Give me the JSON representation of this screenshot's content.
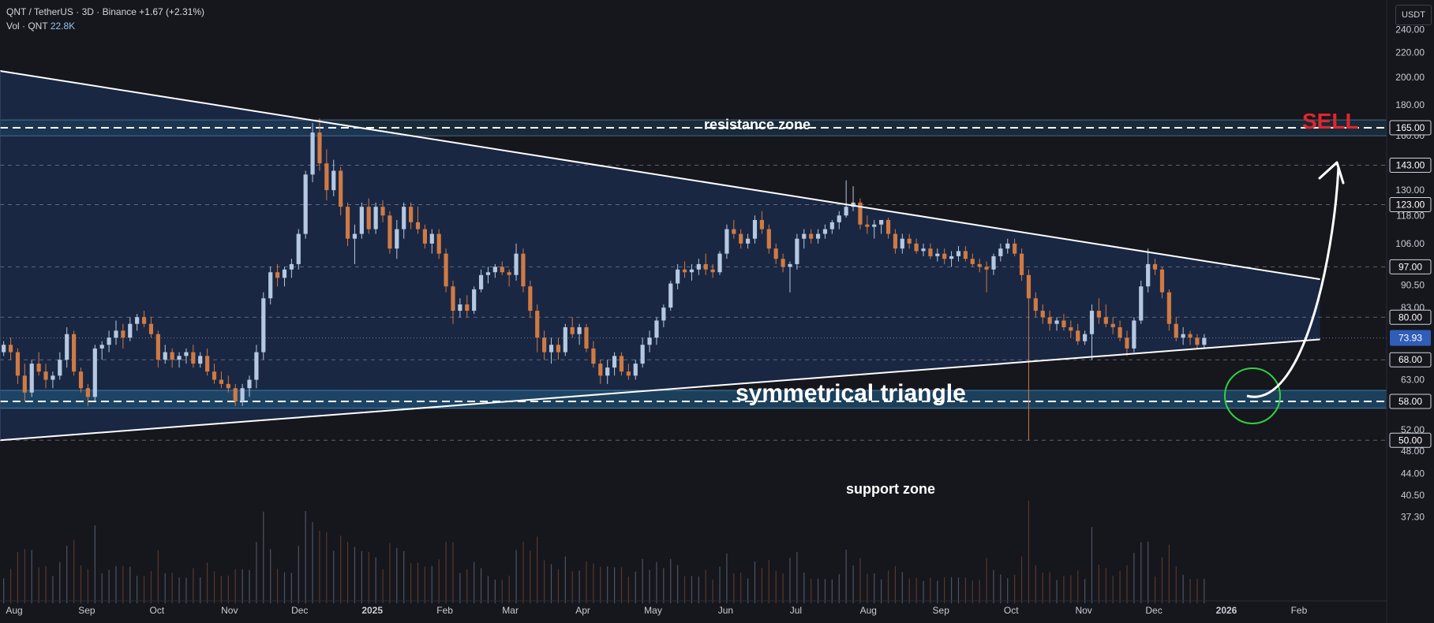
{
  "header": {
    "symbol": "QNT / TetherUS · 3D · Binance",
    "change": "+1.67 (+2.31%)",
    "volume_label": "Vol · QNT",
    "volume_value": "22.8K"
  },
  "currency_button": "USDT",
  "annotations": {
    "resistance": "resistance zone",
    "support": "support zone",
    "triangle": "symmetrical triangle",
    "signal": "SELL"
  },
  "colors": {
    "background": "#16161d",
    "up_candle": "#b4c8e2",
    "down_candle": "#d07a43",
    "triangle_fill": "#1a2a4a",
    "zone_fill": "#1f4f70",
    "signal": "#e0262a",
    "circle": "#30d040"
  },
  "chart_data": {
    "type": "candlestick",
    "title": "QNT / TetherUS · 3D · Binance",
    "x_ticks": [
      "Aug",
      "Sep",
      "Oct",
      "Nov",
      "Dec",
      "2025",
      "Feb",
      "Mar",
      "Apr",
      "May",
      "Jun",
      "Jul",
      "Aug",
      "Sep",
      "Oct",
      "Nov",
      "Dec",
      "2026",
      "Feb"
    ],
    "y_ticks": [
      240.0,
      220.0,
      200.0,
      180.0,
      160.0,
      143.0,
      130.0,
      118.0,
      106.0,
      97.0,
      90.5,
      83.0,
      74.0,
      68.0,
      63.0,
      58.0,
      52.0,
      48.0,
      44.0,
      40.5,
      37.3
    ],
    "y_scale": "log",
    "last_price": 73.93,
    "price_labels": [
      165.0,
      143.0,
      123.0,
      97.0,
      80.0,
      68.0,
      58.0,
      50.0
    ],
    "resistance_zone": [
      160.0,
      170.0
    ],
    "support_zone": [
      56.5,
      60.5
    ],
    "triangle": {
      "upper": [
        [
          "2024-07-26",
          205.0
        ],
        [
          "2026-02-10",
          92.5
        ]
      ],
      "lower": [
        [
          "2024-07-26",
          50.0
        ],
        [
          "2026-02-10",
          73.5
        ]
      ]
    },
    "grid": false,
    "candles": [
      [
        "2024-07-26",
        70,
        73,
        69,
        72
      ],
      [
        "2024-07-29",
        72,
        74,
        68,
        70
      ],
      [
        "2024-08-01",
        70,
        71,
        62,
        64
      ],
      [
        "2024-08-04",
        64,
        67,
        58,
        60
      ],
      [
        "2024-08-07",
        60,
        68,
        59,
        67
      ],
      [
        "2024-08-10",
        67,
        70,
        64,
        65
      ],
      [
        "2024-08-13",
        65,
        67,
        61,
        63
      ],
      [
        "2024-08-16",
        63,
        65,
        61,
        64
      ],
      [
        "2024-08-19",
        64,
        70,
        63,
        68
      ],
      [
        "2024-08-22",
        68,
        77,
        66,
        75
      ],
      [
        "2024-08-25",
        75,
        76,
        64,
        65
      ],
      [
        "2024-08-28",
        65,
        66,
        60,
        61
      ],
      [
        "2024-08-31",
        61,
        62,
        57,
        59
      ],
      [
        "2024-09-03",
        59,
        72,
        58,
        71
      ],
      [
        "2024-09-06",
        71,
        73,
        68,
        72
      ],
      [
        "2024-09-09",
        72,
        76,
        70,
        74
      ],
      [
        "2024-09-12",
        74,
        79,
        72,
        76
      ],
      [
        "2024-09-15",
        76,
        78,
        71,
        74
      ],
      [
        "2024-09-18",
        74,
        80,
        73,
        78
      ],
      [
        "2024-09-21",
        78,
        81,
        76,
        80
      ],
      [
        "2024-09-24",
        80,
        82,
        77,
        78
      ],
      [
        "2024-09-27",
        78,
        80,
        74,
        75
      ],
      [
        "2024-09-30",
        75,
        76,
        66,
        68
      ],
      [
        "2024-10-03",
        68,
        72,
        67,
        70
      ],
      [
        "2024-10-06",
        70,
        71,
        66,
        68
      ],
      [
        "2024-10-09",
        68,
        70,
        66,
        69
      ],
      [
        "2024-10-12",
        69,
        71,
        67,
        70
      ],
      [
        "2024-10-15",
        70,
        72,
        66,
        67
      ],
      [
        "2024-10-18",
        67,
        70,
        66,
        69
      ],
      [
        "2024-10-21",
        69,
        71,
        64,
        65
      ],
      [
        "2024-10-24",
        65,
        67,
        62,
        63
      ],
      [
        "2024-10-27",
        63,
        65,
        61,
        62
      ],
      [
        "2024-10-30",
        62,
        64,
        60,
        61
      ],
      [
        "2024-11-02",
        61,
        62,
        57,
        58
      ],
      [
        "2024-11-05",
        58,
        62,
        57,
        61
      ],
      [
        "2024-11-08",
        61,
        64,
        59,
        63
      ],
      [
        "2024-11-11",
        63,
        72,
        61,
        70
      ],
      [
        "2024-11-14",
        70,
        88,
        68,
        86
      ],
      [
        "2024-11-17",
        86,
        97,
        84,
        95
      ],
      [
        "2024-11-20",
        95,
        98,
        90,
        93
      ],
      [
        "2024-11-23",
        93,
        97,
        90,
        96
      ],
      [
        "2024-11-26",
        96,
        100,
        93,
        98
      ],
      [
        "2024-11-29",
        98,
        112,
        96,
        110
      ],
      [
        "2024-12-02",
        110,
        140,
        108,
        138
      ],
      [
        "2024-12-05",
        138,
        168,
        134,
        162
      ],
      [
        "2024-12-08",
        162,
        171,
        140,
        144
      ],
      [
        "2024-12-11",
        144,
        152,
        125,
        130
      ],
      [
        "2024-12-14",
        130,
        146,
        127,
        140
      ],
      [
        "2024-12-17",
        140,
        142,
        118,
        122
      ],
      [
        "2024-12-20",
        122,
        124,
        105,
        108
      ],
      [
        "2024-12-23",
        108,
        114,
        98,
        110
      ],
      [
        "2024-12-26",
        110,
        124,
        108,
        122
      ],
      [
        "2024-12-29",
        122,
        126,
        110,
        112
      ],
      [
        "2025-01-01",
        112,
        124,
        110,
        122
      ],
      [
        "2025-01-04",
        122,
        125,
        115,
        118
      ],
      [
        "2025-01-07",
        118,
        120,
        102,
        104
      ],
      [
        "2025-01-10",
        104,
        116,
        100,
        112
      ],
      [
        "2025-01-13",
        112,
        124,
        108,
        122
      ],
      [
        "2025-01-16",
        122,
        124,
        112,
        115
      ],
      [
        "2025-01-19",
        115,
        122,
        110,
        112
      ],
      [
        "2025-01-22",
        112,
        114,
        104,
        106
      ],
      [
        "2025-01-25",
        106,
        112,
        102,
        110
      ],
      [
        "2025-01-28",
        110,
        112,
        100,
        102
      ],
      [
        "2025-01-31",
        102,
        104,
        88,
        90
      ],
      [
        "2025-02-03",
        90,
        92,
        78,
        82
      ],
      [
        "2025-02-06",
        82,
        86,
        80,
        84
      ],
      [
        "2025-02-09",
        84,
        87,
        80,
        82
      ],
      [
        "2025-02-12",
        82,
        90,
        81,
        89
      ],
      [
        "2025-02-15",
        89,
        96,
        88,
        94
      ],
      [
        "2025-02-18",
        94,
        97,
        91,
        95
      ],
      [
        "2025-02-21",
        95,
        98,
        93,
        97
      ],
      [
        "2025-02-24",
        97,
        99,
        94,
        95
      ],
      [
        "2025-02-27",
        95,
        96,
        90,
        94
      ],
      [
        "2025-03-02",
        94,
        106,
        92,
        102
      ],
      [
        "2025-03-05",
        102,
        104,
        88,
        90
      ],
      [
        "2025-03-08",
        90,
        92,
        80,
        82
      ],
      [
        "2025-03-11",
        82,
        84,
        70,
        74
      ],
      [
        "2025-03-14",
        74,
        76,
        68,
        70
      ],
      [
        "2025-03-17",
        70,
        74,
        67,
        72
      ],
      [
        "2025-03-20",
        72,
        74,
        68,
        70
      ],
      [
        "2025-03-23",
        70,
        78,
        69,
        77
      ],
      [
        "2025-03-26",
        77,
        80,
        74,
        75
      ],
      [
        "2025-03-29",
        75,
        78,
        72,
        77
      ],
      [
        "2025-04-01",
        77,
        78,
        70,
        71
      ],
      [
        "2025-04-04",
        71,
        73,
        66,
        67
      ],
      [
        "2025-04-07",
        67,
        68,
        62,
        64
      ],
      [
        "2025-04-10",
        64,
        68,
        62,
        66
      ],
      [
        "2025-04-13",
        66,
        70,
        64,
        69
      ],
      [
        "2025-04-16",
        69,
        70,
        64,
        65
      ],
      [
        "2025-04-19",
        65,
        67,
        63,
        64
      ],
      [
        "2025-04-22",
        64,
        68,
        63,
        67
      ],
      [
        "2025-04-25",
        67,
        74,
        66,
        72
      ],
      [
        "2025-04-28",
        72,
        76,
        70,
        74
      ],
      [
        "2025-05-01",
        74,
        80,
        72,
        79
      ],
      [
        "2025-05-04",
        79,
        84,
        77,
        83
      ],
      [
        "2025-05-07",
        83,
        92,
        82,
        91
      ],
      [
        "2025-05-10",
        91,
        98,
        89,
        96
      ],
      [
        "2025-05-13",
        96,
        99,
        93,
        95
      ],
      [
        "2025-05-16",
        95,
        98,
        92,
        96
      ],
      [
        "2025-05-19",
        96,
        100,
        94,
        98
      ],
      [
        "2025-05-22",
        98,
        102,
        94,
        96
      ],
      [
        "2025-05-25",
        96,
        98,
        93,
        95
      ],
      [
        "2025-05-28",
        95,
        103,
        94,
        102
      ],
      [
        "2025-05-31",
        102,
        114,
        100,
        112
      ],
      [
        "2025-06-03",
        112,
        116,
        108,
        110
      ],
      [
        "2025-06-06",
        110,
        112,
        104,
        106
      ],
      [
        "2025-06-09",
        106,
        110,
        104,
        108
      ],
      [
        "2025-06-12",
        108,
        118,
        106,
        116
      ],
      [
        "2025-06-15",
        116,
        120,
        110,
        112
      ],
      [
        "2025-06-18",
        112,
        114,
        102,
        104
      ],
      [
        "2025-06-21",
        104,
        106,
        98,
        100
      ],
      [
        "2025-06-24",
        100,
        102,
        95,
        97
      ],
      [
        "2025-06-27",
        97,
        99,
        88,
        98
      ],
      [
        "2025-06-30",
        98,
        110,
        96,
        108
      ],
      [
        "2025-07-03",
        108,
        112,
        104,
        110
      ],
      [
        "2025-07-06",
        110,
        112,
        106,
        108
      ],
      [
        "2025-07-09",
        108,
        112,
        106,
        110
      ],
      [
        "2025-07-12",
        110,
        114,
        108,
        112
      ],
      [
        "2025-07-15",
        112,
        116,
        110,
        115
      ],
      [
        "2025-07-18",
        115,
        120,
        112,
        118
      ],
      [
        "2025-07-21",
        118,
        135,
        117,
        122
      ],
      [
        "2025-07-24",
        122,
        132,
        120,
        124
      ],
      [
        "2025-07-27",
        124,
        126,
        112,
        114
      ],
      [
        "2025-07-30",
        114,
        118,
        110,
        113
      ],
      [
        "2025-08-02",
        113,
        116,
        108,
        114
      ],
      [
        "2025-08-05",
        114,
        116,
        110,
        116
      ],
      [
        "2025-08-08",
        116,
        117,
        108,
        110
      ],
      [
        "2025-08-11",
        110,
        112,
        102,
        104
      ],
      [
        "2025-08-14",
        104,
        110,
        102,
        108
      ],
      [
        "2025-08-17",
        108,
        110,
        104,
        106
      ],
      [
        "2025-08-20",
        106,
        108,
        102,
        103
      ],
      [
        "2025-08-23",
        103,
        106,
        101,
        104
      ],
      [
        "2025-08-26",
        104,
        106,
        100,
        101
      ],
      [
        "2025-08-29",
        101,
        104,
        99,
        102
      ],
      [
        "2025-09-01",
        102,
        104,
        98,
        100
      ],
      [
        "2025-09-04",
        100,
        103,
        97,
        101
      ],
      [
        "2025-09-07",
        101,
        105,
        99,
        103
      ],
      [
        "2025-09-10",
        103,
        105,
        99,
        100
      ],
      [
        "2025-09-13",
        100,
        102,
        97,
        98
      ],
      [
        "2025-09-16",
        98,
        100,
        95,
        97
      ],
      [
        "2025-09-19",
        97,
        99,
        88,
        96
      ],
      [
        "2025-09-22",
        96,
        102,
        94,
        101
      ],
      [
        "2025-09-25",
        101,
        106,
        99,
        104
      ],
      [
        "2025-09-28",
        104,
        108,
        102,
        106
      ],
      [
        "2025-10-01",
        106,
        108,
        101,
        102
      ],
      [
        "2025-10-04",
        102,
        104,
        92,
        94
      ],
      [
        "2025-10-07",
        94,
        96,
        50,
        86
      ],
      [
        "2025-10-10",
        86,
        88,
        80,
        82
      ],
      [
        "2025-10-13",
        82,
        84,
        78,
        80
      ],
      [
        "2025-10-16",
        80,
        82,
        76,
        78
      ],
      [
        "2025-10-19",
        78,
        80,
        76,
        79
      ],
      [
        "2025-10-22",
        79,
        81,
        76,
        77
      ],
      [
        "2025-10-25",
        77,
        79,
        74,
        76
      ],
      [
        "2025-10-28",
        76,
        78,
        72,
        73
      ],
      [
        "2025-10-31",
        73,
        76,
        72,
        75
      ],
      [
        "2025-11-03",
        75,
        84,
        68,
        82
      ],
      [
        "2025-11-06",
        82,
        86,
        78,
        80
      ],
      [
        "2025-11-09",
        80,
        84,
        77,
        78
      ],
      [
        "2025-11-12",
        78,
        80,
        75,
        77
      ],
      [
        "2025-11-15",
        77,
        79,
        73,
        74
      ],
      [
        "2025-11-18",
        74,
        76,
        69,
        71
      ],
      [
        "2025-11-21",
        71,
        80,
        70,
        79
      ],
      [
        "2025-11-24",
        79,
        92,
        78,
        90
      ],
      [
        "2025-11-27",
        90,
        104,
        88,
        98
      ],
      [
        "2025-11-30",
        98,
        100,
        94,
        96
      ],
      [
        "2025-12-03",
        96,
        97,
        86,
        88
      ],
      [
        "2025-12-06",
        88,
        89,
        76,
        78
      ],
      [
        "2025-12-09",
        78,
        80,
        73,
        74
      ],
      [
        "2025-12-12",
        74,
        77,
        72,
        75
      ],
      [
        "2025-12-15",
        75,
        76,
        72,
        74
      ],
      [
        "2025-12-18",
        74,
        75,
        71,
        72
      ],
      [
        "2025-12-21",
        72,
        75,
        71,
        73.93
      ]
    ]
  }
}
